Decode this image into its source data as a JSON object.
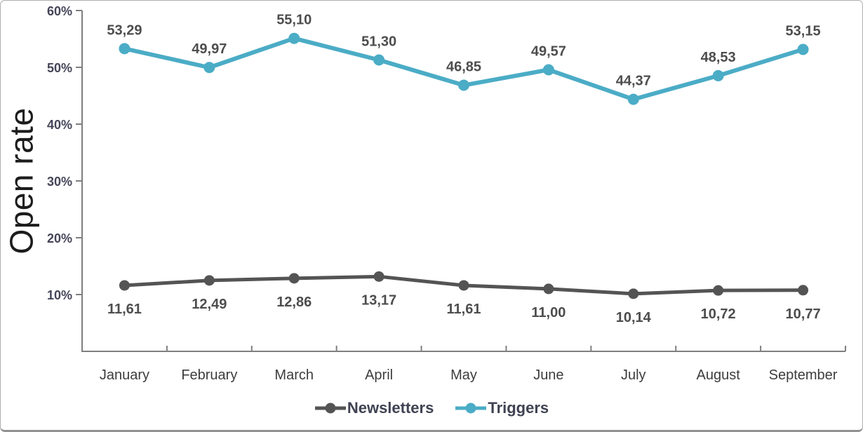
{
  "chart_data": {
    "type": "line",
    "title": "",
    "ylabel": "Open rate",
    "xlabel": "",
    "categories": [
      "January",
      "February",
      "March",
      "April",
      "May",
      "June",
      "July",
      "August",
      "September"
    ],
    "series": [
      {
        "name": "Newsletters",
        "color": "#545454",
        "values": [
          11.61,
          12.49,
          12.86,
          13.17,
          11.61,
          11.0,
          10.14,
          10.72,
          10.77
        ],
        "labels": [
          "11,61",
          "12,49",
          "12,86",
          "13,17",
          "11,61",
          "11,00",
          "10,14",
          "10,72",
          "10,77"
        ],
        "label_position": "below",
        "line_width": 5,
        "marker_radius": 7.5
      },
      {
        "name": "Triggers",
        "color": "#4BACC6",
        "values": [
          53.29,
          49.97,
          55.1,
          51.3,
          46.85,
          49.57,
          44.37,
          48.53,
          53.15
        ],
        "labels": [
          "53,29",
          "49,97",
          "55,10",
          "51,30",
          "46,85",
          "49,57",
          "44,37",
          "48,53",
          "53,15"
        ],
        "label_position": "above",
        "line_width": 6,
        "marker_radius": 8
      }
    ],
    "y_ticks": [
      {
        "value": 10,
        "label": "10%"
      },
      {
        "value": 20,
        "label": "20%"
      },
      {
        "value": 30,
        "label": "30%"
      },
      {
        "value": 40,
        "label": "40%"
      },
      {
        "value": 50,
        "label": "50%"
      },
      {
        "value": 60,
        "label": "60%"
      }
    ],
    "ylim": [
      0,
      60
    ],
    "grid": false,
    "legend_position": "bottom",
    "colors": {
      "axis": "#7f7f7f",
      "tick_label": "#454559",
      "month_label": "#3d3d3d",
      "data_label": "#4d4d4d",
      "axis_title": "#1c1c1c"
    }
  }
}
